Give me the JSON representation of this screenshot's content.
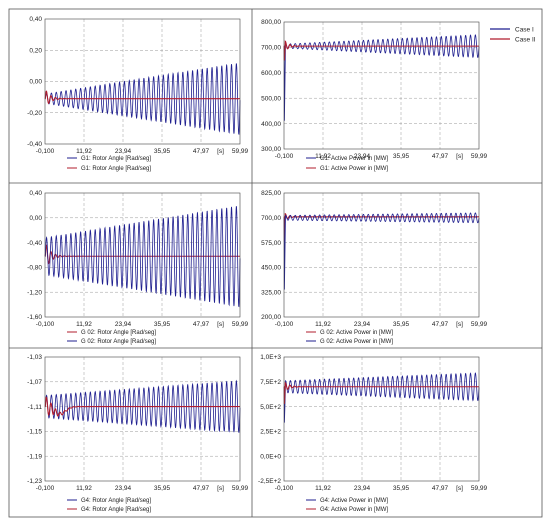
{
  "colors": {
    "case1": "#1f1f8f",
    "case2": "#b01c2e",
    "grid": "#9a9a9a"
  },
  "legend": {
    "case1": "Case I",
    "case2": "Case II"
  },
  "chart_data": [
    {
      "type": "line",
      "xlim": [
        -0.1,
        59.99
      ],
      "xticks": [
        "-0,100",
        "11,92",
        "23,94",
        "35,95",
        "47,97",
        "[s]",
        "59,99"
      ],
      "ylim": [
        -0.4,
        0.4
      ],
      "yticks": [
        "0,40",
        "0,20",
        "0,00",
        "-0,20",
        "-0,40"
      ],
      "series": [
        {
          "name": "G1: Rotor Angle [Rad/seg]",
          "case": "case1",
          "model": {
            "base": -0.11,
            "amp0": 0.03,
            "amp1": 0.23,
            "period": 1.5
          }
        },
        {
          "name": "G1: Rotor Angle [Rad/seg]",
          "case": "case2",
          "model": {
            "base": -0.11,
            "amp0": 0.06,
            "decay": 1.5,
            "period": 1.4
          }
        }
      ]
    },
    {
      "type": "line",
      "xlim": [
        -0.1,
        59.99
      ],
      "xticks": [
        "-0,100",
        "11,92",
        "23,94",
        "35,95",
        "47,97",
        "[s]",
        "59,99"
      ],
      "ylim": [
        300,
        800
      ],
      "yticks": [
        "800,00",
        "700,00",
        "600,00",
        "500,00",
        "400,00",
        "300,00"
      ],
      "series": [
        {
          "name": "G1: Active Power in [MW]",
          "case": "case1",
          "model": {
            "base": 705,
            "amp0": 8,
            "amp1": 45,
            "period": 1.5,
            "dip": 380
          }
        },
        {
          "name": "G1: Active Power in [MW]",
          "case": "case2",
          "model": {
            "base": 705,
            "amp0": 25,
            "decay": 1.2,
            "period": 1.4,
            "dip": 640
          }
        }
      ]
    },
    {
      "type": "line",
      "xlim": [
        -0.1,
        59.99
      ],
      "xticks": [
        "-0,100",
        "11,92",
        "23,94",
        "35,95",
        "47,97",
        "[s]",
        "59,99"
      ],
      "ylim": [
        -1.6,
        0.4
      ],
      "yticks": [
        "0,40",
        "0,00",
        "-0,40",
        "-0,80",
        "-1,20",
        "-1,60"
      ],
      "series": [
        {
          "name": "G 02: Rotor Angle [Rad/seg]",
          "case": "case2",
          "model": {
            "base": -0.62,
            "amp0": 0.22,
            "decay": 1.6,
            "period": 1.4
          }
        },
        {
          "name": "G 02: Rotor Angle [Rad/seg]",
          "case": "case1",
          "model": {
            "base": -0.62,
            "amp0": 0.3,
            "amp1": 0.82,
            "period": 1.5
          }
        }
      ]
    },
    {
      "type": "line",
      "xlim": [
        -0.1,
        59.99
      ],
      "xticks": [
        "-0,100",
        "11,92",
        "23,94",
        "35,95",
        "47,97",
        "[s]",
        "59,99"
      ],
      "ylim": [
        200,
        825
      ],
      "yticks": [
        "825,00",
        "700,00",
        "575,00",
        "450,00",
        "325,00",
        "200,00"
      ],
      "series": [
        {
          "name": "G 02: Active Power in [MW]",
          "case": "case2",
          "model": {
            "base": 705,
            "amp0": 20,
            "decay": 1.2,
            "period": 1.4,
            "dip": 560
          }
        },
        {
          "name": "G 02: Active Power in [MW]",
          "case": "case1",
          "model": {
            "base": 700,
            "amp0": 12,
            "amp1": 25,
            "period": 1.5,
            "dip": 300
          }
        }
      ]
    },
    {
      "type": "line",
      "xlim": [
        -0.1,
        59.99
      ],
      "xticks": [
        "-0,100",
        "11,92",
        "23,94",
        "35,95",
        "47,97",
        "[s]",
        "59,99"
      ],
      "ylim": [
        -1.23,
        -1.03
      ],
      "yticks": [
        "-1,03",
        "-1,07",
        "-1,11",
        "-1,15",
        "-1,19",
        "-1,23"
      ],
      "series": [
        {
          "name": "G4: Rotor Angle [Rad/seg]",
          "case": "case1",
          "model": {
            "base": -1.11,
            "amp0": 0.018,
            "amp1": 0.042,
            "period": 1.5
          }
        },
        {
          "name": "G4: Rotor Angle [Rad/seg]",
          "case": "case2",
          "model": {
            "base": -1.11,
            "amp0": 0.018,
            "decay": 2.5,
            "period": 1.4,
            "sag": 0.012
          }
        }
      ]
    },
    {
      "type": "line",
      "xlim": [
        -0.1,
        59.99
      ],
      "xticks": [
        "-0,100",
        "11,92",
        "23,94",
        "35,95",
        "47,97",
        "[s]",
        "59,99"
      ],
      "ylim": [
        -250,
        1000
      ],
      "yticks": [
        "1,0E+3",
        "7,5E+2",
        "5,0E+2",
        "2,5E+2",
        "0,0E+0",
        "-2,5E+2"
      ],
      "series": [
        {
          "name": "G4: Active Power in [MW]",
          "case": "case1",
          "model": {
            "base": 700,
            "amp0": 60,
            "amp1": 140,
            "period": 1.5,
            "dip": 300
          }
        },
        {
          "name": "G4: Active Power in [MW]",
          "case": "case2",
          "model": {
            "base": 700,
            "amp0": 50,
            "decay": 1.5,
            "period": 1.4,
            "dip": 500
          }
        }
      ]
    }
  ]
}
